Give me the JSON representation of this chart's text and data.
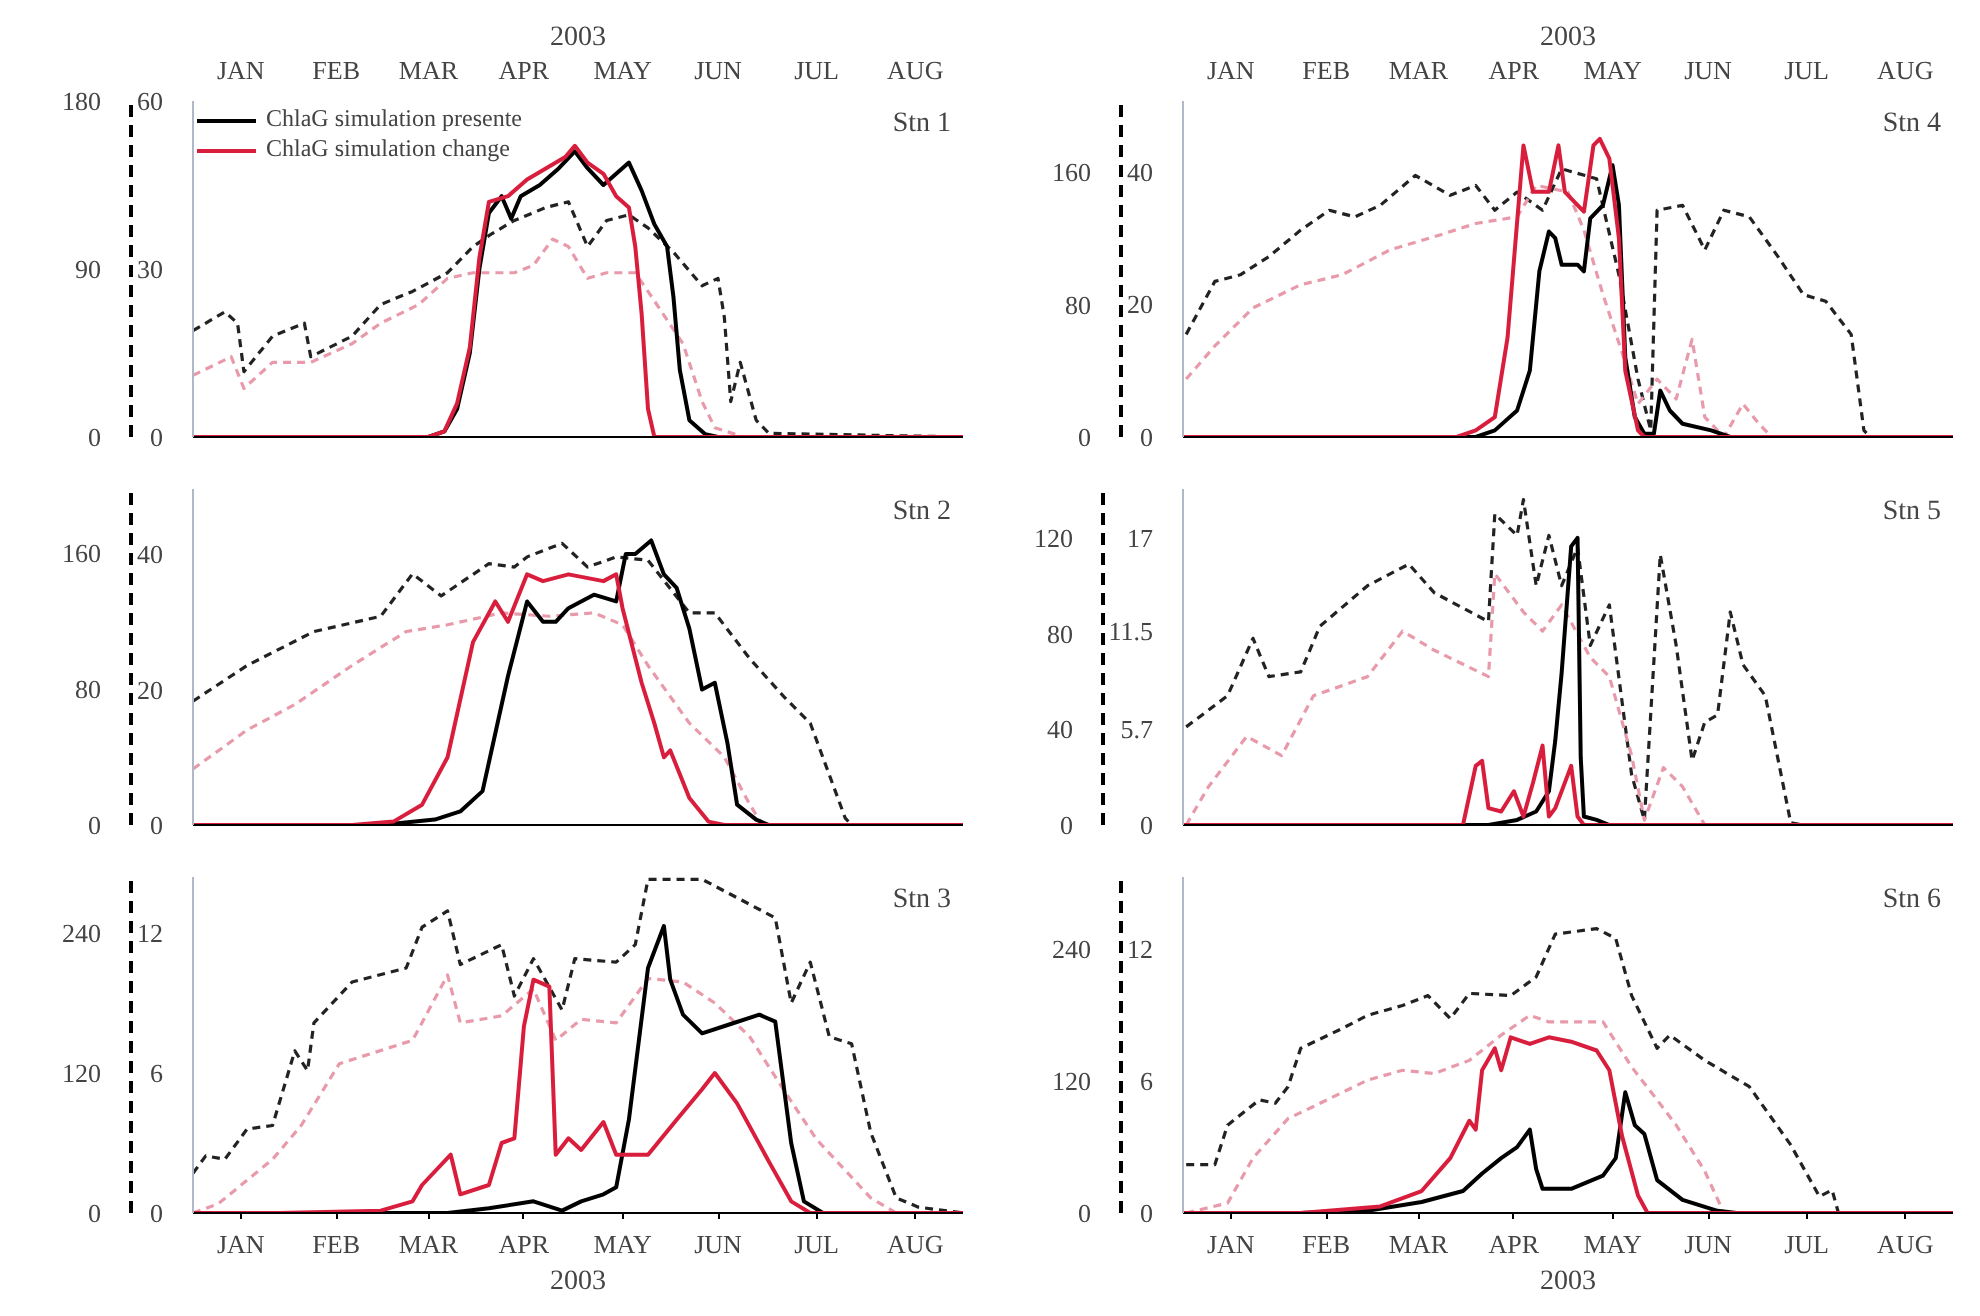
{
  "chart_data": [
    {
      "type": "line",
      "title": "Stn 1",
      "x2label": "2003",
      "xlim": [
        "2003-01-01",
        "2003-08-31"
      ],
      "x2lim": [
        "2003-01-01",
        "2003-08-31"
      ],
      "x2ticks": [
        {
          "value": "2003-01-16",
          "label": "JAN"
        },
        {
          "value": "2003-02-15",
          "label": "FEB"
        },
        {
          "value": "2003-03-16",
          "label": "MAR"
        },
        {
          "value": "2003-04-15",
          "label": "APR"
        },
        {
          "value": "2003-05-16",
          "label": "MAY"
        },
        {
          "value": "2003-06-15",
          "label": "JUN"
        },
        {
          "value": "2003-07-16",
          "label": "JUL"
        },
        {
          "value": "2003-08-16",
          "label": "AUG"
        }
      ],
      "ylim": [
        0,
        60
      ],
      "yticks": [
        0,
        30,
        60
      ],
      "y2lim": [
        0,
        180
      ],
      "y2ticks": [
        0,
        90,
        180
      ],
      "legend": "top left",
      "series": [
        {
          "name": "ChlaG simulation presente",
          "color": "#000000",
          "line_style": "solid",
          "x": [
            "2003-01-01",
            "2003-03-16",
            "2003-03-21",
            "2003-03-25",
            "2003-03-29",
            "2003-04-01",
            "2003-04-04",
            "2003-04-08",
            "2003-04-11",
            "2003-04-14",
            "2003-04-20",
            "2003-04-26",
            "2003-05-01",
            "2003-05-05",
            "2003-05-10",
            "2003-05-14",
            "2003-05-18",
            "2003-05-22",
            "2003-05-26",
            "2003-05-30",
            "2003-06-01",
            "2003-06-03",
            "2003-06-06",
            "2003-06-11",
            "2003-06-15",
            "2003-08-31"
          ],
          "values": [
            0,
            0,
            1,
            5,
            15,
            30,
            40,
            43,
            39,
            43,
            45,
            48,
            51,
            48,
            45,
            47,
            49,
            44,
            38,
            34,
            25,
            12,
            3,
            0.5,
            0,
            0
          ]
        },
        {
          "name": "ChlaG simulation change",
          "color": "#d81e3c",
          "line_style": "solid",
          "x": [
            "2003-01-01",
            "2003-03-16",
            "2003-03-21",
            "2003-03-25",
            "2003-03-29",
            "2003-04-01",
            "2003-04-04",
            "2003-04-10",
            "2003-04-16",
            "2003-04-22",
            "2003-04-28",
            "2003-05-01",
            "2003-05-05",
            "2003-05-10",
            "2003-05-14",
            "2003-05-18",
            "2003-05-20",
            "2003-05-22",
            "2003-05-24",
            "2003-05-26",
            "2003-08-31"
          ],
          "values": [
            0,
            0,
            1,
            6,
            16,
            32,
            42,
            43,
            46,
            48,
            50,
            52,
            49,
            47,
            43,
            41,
            34,
            22,
            5,
            0,
            0
          ]
        },
        {
          "color": "#222222",
          "axis": "y2",
          "line_style": "dashed",
          "x": [
            "2003-01-01",
            "2003-01-11",
            "2003-01-15",
            "2003-01-17",
            "2003-01-26",
            "2003-02-05",
            "2003-02-07",
            "2003-02-20",
            "2003-03-01",
            "2003-03-11",
            "2003-03-22",
            "2003-03-30",
            "2003-04-05",
            "2003-04-12",
            "2003-04-22",
            "2003-04-29",
            "2003-05-05",
            "2003-05-11",
            "2003-05-18",
            "2003-05-24",
            "2003-06-01",
            "2003-06-10",
            "2003-06-15",
            "2003-06-17",
            "2003-06-19",
            "2003-06-22",
            "2003-06-27",
            "2003-07-01",
            "2003-08-31"
          ],
          "values": [
            57,
            67,
            61,
            35,
            54,
            61,
            43,
            54,
            71,
            78,
            88,
            102,
            109,
            116,
            123,
            126,
            102,
            116,
            119,
            112,
            99,
            81,
            85,
            64,
            19,
            40,
            9,
            2,
            0
          ]
        },
        {
          "color": "#e89aaa",
          "axis": "y2",
          "line_style": "dashed",
          "x": [
            "2003-01-01",
            "2003-01-13",
            "2003-01-17",
            "2003-01-26",
            "2003-02-07",
            "2003-02-20",
            "2003-03-01",
            "2003-03-13",
            "2003-03-22",
            "2003-03-30",
            "2003-04-12",
            "2003-04-18",
            "2003-04-24",
            "2003-04-29",
            "2003-05-05",
            "2003-05-11",
            "2003-05-20",
            "2003-05-24",
            "2003-06-04",
            "2003-06-10",
            "2003-06-14",
            "2003-06-23",
            "2003-08-31"
          ],
          "values": [
            33,
            43,
            26,
            40,
            40,
            50,
            61,
            71,
            85,
            88,
            88,
            92,
            106,
            102,
            85,
            88,
            88,
            78,
            50,
            19,
            5,
            0,
            0
          ]
        }
      ]
    },
    {
      "type": "line",
      "title": "Stn 4",
      "x2label": "2003",
      "xlim": [
        "2003-01-01",
        "2003-08-31"
      ],
      "x2lim": [
        "2003-01-01",
        "2003-08-31"
      ],
      "x2ticks": [
        {
          "value": "2003-01-16",
          "label": "JAN"
        },
        {
          "value": "2003-02-15",
          "label": "FEB"
        },
        {
          "value": "2003-03-16",
          "label": "MAR"
        },
        {
          "value": "2003-04-15",
          "label": "APR"
        },
        {
          "value": "2003-05-16",
          "label": "MAY"
        },
        {
          "value": "2003-06-15",
          "label": "JUN"
        },
        {
          "value": "2003-07-16",
          "label": "JUL"
        },
        {
          "value": "2003-08-16",
          "label": "AUG"
        }
      ],
      "ylim": [
        0,
        50.7
      ],
      "yticks": [
        0,
        20,
        40
      ],
      "y2lim": [
        0,
        203
      ],
      "y2ticks": [
        0,
        80,
        160
      ],
      "series": [
        {
          "color": "#000000",
          "line_style": "solid",
          "x": [
            "2003-01-01",
            "2003-04-03",
            "2003-04-09",
            "2003-04-16",
            "2003-04-20",
            "2003-04-23",
            "2003-04-26",
            "2003-04-28",
            "2003-04-30",
            "2003-05-05",
            "2003-05-07",
            "2003-05-09",
            "2003-05-13",
            "2003-05-16",
            "2003-05-18",
            "2003-05-20",
            "2003-05-23",
            "2003-05-26",
            "2003-05-29",
            "2003-05-31",
            "2003-06-03",
            "2003-06-07",
            "2003-06-16",
            "2003-06-22",
            "2003-08-31"
          ],
          "values": [
            0,
            0,
            1,
            4,
            10,
            25,
            31,
            30,
            26,
            26,
            25,
            33,
            35,
            41,
            35,
            12,
            3,
            0.5,
            0.5,
            7,
            4,
            2,
            1,
            0,
            0
          ]
        },
        {
          "color": "#d81e3c",
          "line_style": "solid",
          "x": [
            "2003-01-01",
            "2003-03-28",
            "2003-04-03",
            "2003-04-09",
            "2003-04-13",
            "2003-04-18",
            "2003-04-21",
            "2003-04-26",
            "2003-04-29",
            "2003-05-01",
            "2003-05-05",
            "2003-05-07",
            "2003-05-10",
            "2003-05-12",
            "2003-05-15",
            "2003-05-18",
            "2003-05-20",
            "2003-05-24",
            "2003-05-26",
            "2003-08-31"
          ],
          "values": [
            0,
            0,
            1,
            3,
            15,
            44,
            37,
            37,
            44,
            37,
            35,
            34,
            44,
            45,
            42,
            30,
            10,
            1,
            0,
            0
          ]
        },
        {
          "color": "#222222",
          "axis": "y2",
          "line_style": "dashed",
          "x": [
            "2003-01-02",
            "2003-01-11",
            "2003-01-19",
            "2003-01-28",
            "2003-02-07",
            "2003-02-16",
            "2003-02-24",
            "2003-03-04",
            "2003-03-15",
            "2003-03-26",
            "2003-04-03",
            "2003-04-09",
            "2003-04-16",
            "2003-04-24",
            "2003-04-30",
            "2003-05-11",
            "2003-05-18",
            "2003-05-24",
            "2003-05-28",
            "2003-05-30",
            "2003-06-07",
            "2003-06-14",
            "2003-06-20",
            "2003-06-28",
            "2003-07-07",
            "2003-07-15",
            "2003-07-22",
            "2003-07-30",
            "2003-08-03",
            "2003-08-05",
            "2003-08-31"
          ],
          "values": [
            62,
            94,
            98,
            109,
            125,
            137,
            133,
            140,
            158,
            146,
            152,
            137,
            148,
            137,
            162,
            156,
            98,
            35,
            4,
            137,
            140,
            113,
            137,
            133,
            109,
            86,
            82,
            62,
            4,
            0,
            0
          ]
        },
        {
          "color": "#e89aaa",
          "axis": "y2",
          "line_style": "dashed",
          "x": [
            "2003-01-02",
            "2003-01-11",
            "2003-01-23",
            "2003-02-07",
            "2003-02-20",
            "2003-03-07",
            "2003-03-21",
            "2003-04-03",
            "2003-04-16",
            "2003-04-22",
            "2003-05-02",
            "2003-05-07",
            "2003-05-13",
            "2003-05-19",
            "2003-05-24",
            "2003-05-30",
            "2003-06-05",
            "2003-06-10",
            "2003-06-14",
            "2003-06-20",
            "2003-06-26",
            "2003-07-01",
            "2003-07-05",
            "2003-08-31"
          ],
          "values": [
            35,
            55,
            78,
            92,
            98,
            113,
            121,
            129,
            133,
            152,
            148,
            125,
            86,
            51,
            20,
            35,
            23,
            59,
            12,
            0,
            20,
            8,
            0,
            0
          ]
        }
      ]
    },
    {
      "type": "line",
      "title": "Stn 2",
      "tick_labels": "y",
      "xlim": [
        "2003-01-01",
        "2003-08-31"
      ],
      "ylim": [
        0,
        49.6
      ],
      "yticks": [
        0,
        20,
        40
      ],
      "y2lim": [
        0,
        198
      ],
      "y2ticks": [
        0,
        80,
        160
      ],
      "series": [
        {
          "color": "#000000",
          "line_style": "solid",
          "x": [
            "2003-01-01",
            "2003-03-01",
            "2003-03-18",
            "2003-03-26",
            "2003-04-02",
            "2003-04-10",
            "2003-04-16",
            "2003-04-21",
            "2003-04-25",
            "2003-04-29",
            "2003-05-07",
            "2003-05-14",
            "2003-05-17",
            "2003-05-20",
            "2003-05-25",
            "2003-05-29",
            "2003-06-02",
            "2003-06-06",
            "2003-06-10",
            "2003-06-14",
            "2003-06-18",
            "2003-06-21",
            "2003-06-27",
            "2003-07-01",
            "2003-08-31"
          ],
          "values": [
            0,
            0,
            0.8,
            2,
            5,
            22,
            33,
            30,
            30,
            32,
            34,
            33,
            40,
            40,
            42,
            37,
            35,
            29,
            20,
            21,
            12,
            3,
            0.8,
            0,
            0
          ]
        },
        {
          "color": "#d81e3c",
          "line_style": "solid",
          "x": [
            "2003-01-01",
            "2003-02-20",
            "2003-03-05",
            "2003-03-14",
            "2003-03-22",
            "2003-03-30",
            "2003-04-06",
            "2003-04-10",
            "2003-04-16",
            "2003-04-21",
            "2003-04-29",
            "2003-05-10",
            "2003-05-14",
            "2003-05-16",
            "2003-05-22",
            "2003-05-26",
            "2003-05-29",
            "2003-05-31",
            "2003-06-06",
            "2003-06-12",
            "2003-06-17",
            "2003-08-31"
          ],
          "values": [
            0,
            0,
            0.5,
            3,
            10,
            27,
            33,
            30,
            37,
            36,
            37,
            36,
            37,
            32,
            21,
            15,
            10,
            11,
            4,
            0.5,
            0,
            0
          ]
        },
        {
          "color": "#222222",
          "axis": "y2",
          "line_style": "dashed",
          "x": [
            "2003-01-01",
            "2003-01-18",
            "2003-02-08",
            "2003-03-01",
            "2003-03-11",
            "2003-03-20",
            "2003-04-04",
            "2003-04-12",
            "2003-04-16",
            "2003-04-27",
            "2003-05-05",
            "2003-05-14",
            "2003-05-24",
            "2003-06-06",
            "2003-06-14",
            "2003-06-25",
            "2003-07-06",
            "2003-07-14",
            "2003-07-25",
            "2003-07-27",
            "2003-08-31"
          ],
          "values": [
            73,
            94,
            114,
            123,
            148,
            135,
            154,
            152,
            158,
            166,
            152,
            158,
            156,
            125,
            125,
            98,
            75,
            60,
            4,
            0,
            0
          ]
        },
        {
          "color": "#e89aaa",
          "axis": "y2",
          "line_style": "dashed",
          "x": [
            "2003-01-01",
            "2003-01-18",
            "2003-02-02",
            "2003-02-20",
            "2003-03-09",
            "2003-03-22",
            "2003-04-08",
            "2003-04-23",
            "2003-05-07",
            "2003-05-16",
            "2003-05-24",
            "2003-06-06",
            "2003-06-17",
            "2003-06-25",
            "2003-06-29",
            "2003-08-31"
          ],
          "values": [
            33,
            56,
            71,
            94,
            114,
            118,
            125,
            123,
            125,
            118,
            94,
            60,
            40,
            12,
            0,
            0
          ]
        }
      ]
    },
    {
      "type": "line",
      "title": "Stn 5",
      "tick_labels": "y",
      "xlim": [
        "2003-01-01",
        "2003-08-31"
      ],
      "ylim": [
        0,
        19.9
      ],
      "yticks": [
        0,
        5.7,
        11.5,
        17
      ],
      "y2lim": [
        0,
        140.4
      ],
      "y2ticks": [
        0,
        40,
        80,
        120
      ],
      "series": [
        {
          "color": "#000000",
          "line_style": "solid",
          "x": [
            "2003-01-01",
            "2003-04-07",
            "2003-04-16",
            "2003-04-22",
            "2003-04-26",
            "2003-04-28",
            "2003-04-30",
            "2003-05-03",
            "2003-05-05",
            "2003-05-06",
            "2003-05-07",
            "2003-05-11",
            "2003-05-15",
            "2003-08-31"
          ],
          "values": [
            0,
            0,
            0.3,
            0.8,
            2,
            5,
            9,
            16.5,
            17,
            4,
            0.5,
            0.3,
            0,
            0
          ]
        },
        {
          "color": "#d81e3c",
          "line_style": "solid",
          "x": [
            "2003-01-01",
            "2003-03-30",
            "2003-04-03",
            "2003-04-05",
            "2003-04-07",
            "2003-04-11",
            "2003-04-15",
            "2003-04-18",
            "2003-04-21",
            "2003-04-24",
            "2003-04-26",
            "2003-04-28",
            "2003-05-03",
            "2003-05-05",
            "2003-05-07",
            "2003-08-31"
          ],
          "values": [
            0,
            0,
            3.5,
            3.8,
            1,
            0.8,
            2,
            0.5,
            2.5,
            4.7,
            0.5,
            1,
            3.5,
            0.5,
            0,
            0
          ]
        },
        {
          "color": "#222222",
          "axis": "y2",
          "line_style": "dashed",
          "x": [
            "2003-01-02",
            "2003-01-15",
            "2003-01-23",
            "2003-01-28",
            "2003-02-07",
            "2003-02-13",
            "2003-02-28",
            "2003-03-13",
            "2003-03-21",
            "2003-04-07",
            "2003-04-09",
            "2003-04-16",
            "2003-04-18",
            "2003-04-22",
            "2003-04-26",
            "2003-04-30",
            "2003-05-05",
            "2003-05-09",
            "2003-05-15",
            "2003-05-22",
            "2003-05-26",
            "2003-05-31",
            "2003-06-05",
            "2003-06-10",
            "2003-06-14",
            "2003-06-18",
            "2003-06-22",
            "2003-06-26",
            "2003-07-03",
            "2003-07-11",
            "2003-07-15",
            "2003-08-31"
          ],
          "values": [
            41,
            54,
            78,
            62,
            64,
            83,
            100,
            109,
            97,
            85,
            130,
            121,
            136,
            100,
            121,
            100,
            116,
            75,
            92,
            21,
            2,
            113,
            75,
            27,
            43,
            46,
            89,
            67,
            54,
            1,
            0,
            0
          ]
        },
        {
          "color": "#e89aaa",
          "axis": "y2",
          "line_style": "dashed",
          "x": [
            "2003-01-02",
            "2003-01-09",
            "2003-01-21",
            "2003-02-01",
            "2003-02-11",
            "2003-02-28",
            "2003-03-11",
            "2003-03-21",
            "2003-04-07",
            "2003-04-09",
            "2003-04-18",
            "2003-04-24",
            "2003-04-30",
            "2003-05-09",
            "2003-05-15",
            "2003-05-22",
            "2003-05-26",
            "2003-06-01",
            "2003-06-07",
            "2003-06-14",
            "2003-08-31"
          ],
          "values": [
            0,
            16,
            37,
            29,
            54,
            62,
            81,
            73,
            62,
            105,
            89,
            81,
            92,
            70,
            62,
            29,
            2,
            24,
            16,
            0,
            0
          ]
        }
      ]
    },
    {
      "type": "line",
      "title": "Stn 3",
      "xlabel": "2003",
      "xlim": [
        "2003-01-01",
        "2003-08-31"
      ],
      "xticks": [
        {
          "value": "2003-01-16",
          "label": "JAN"
        },
        {
          "value": "2003-02-15",
          "label": "FEB"
        },
        {
          "value": "2003-03-16",
          "label": "MAR"
        },
        {
          "value": "2003-04-15",
          "label": "APR"
        },
        {
          "value": "2003-05-16",
          "label": "MAY"
        },
        {
          "value": "2003-06-15",
          "label": "JUN"
        },
        {
          "value": "2003-07-16",
          "label": "JUL"
        },
        {
          "value": "2003-08-16",
          "label": "AUG"
        }
      ],
      "ylim": [
        0,
        14.4
      ],
      "yticks": [
        0,
        6,
        12
      ],
      "y2lim": [
        0,
        288
      ],
      "y2ticks": [
        0,
        120,
        240
      ],
      "series": [
        {
          "color": "#000000",
          "line_style": "solid",
          "x": [
            "2003-01-01",
            "2003-03-22",
            "2003-04-04",
            "2003-04-18",
            "2003-04-27",
            "2003-05-03",
            "2003-05-10",
            "2003-05-14",
            "2003-05-18",
            "2003-05-24",
            "2003-05-29",
            "2003-05-31",
            "2003-06-04",
            "2003-06-10",
            "2003-06-19",
            "2003-06-28",
            "2003-07-03",
            "2003-07-08",
            "2003-07-12",
            "2003-07-18",
            "2003-08-31"
          ],
          "values": [
            0,
            0,
            0.2,
            0.5,
            0.1,
            0.5,
            0.8,
            1.1,
            4,
            10.5,
            12.3,
            10,
            8.5,
            7.7,
            8.1,
            8.5,
            8.2,
            3,
            0.5,
            0,
            0
          ]
        },
        {
          "color": "#d81e3c",
          "line_style": "solid",
          "x": [
            "2003-01-01",
            "2003-01-28",
            "2003-03-01",
            "2003-03-11",
            "2003-03-14",
            "2003-03-23",
            "2003-03-26",
            "2003-04-04",
            "2003-04-08",
            "2003-04-12",
            "2003-04-15",
            "2003-04-18",
            "2003-04-23",
            "2003-04-25",
            "2003-04-29",
            "2003-05-03",
            "2003-05-10",
            "2003-05-14",
            "2003-05-24",
            "2003-06-02",
            "2003-06-10",
            "2003-06-14",
            "2003-06-21",
            "2003-07-01",
            "2003-07-08",
            "2003-07-14",
            "2003-08-31"
          ],
          "values": [
            0,
            0,
            0.1,
            0.5,
            1.2,
            2.5,
            0.8,
            1.2,
            3,
            3.2,
            8,
            10,
            9.7,
            2.5,
            3.2,
            2.7,
            3.9,
            2.5,
            2.5,
            4,
            5.3,
            6,
            4.7,
            2.2,
            0.5,
            0,
            0
          ]
        },
        {
          "color": "#222222",
          "axis": "y2",
          "line_style": "dashed",
          "x": [
            "2003-01-01",
            "2003-01-05",
            "2003-01-11",
            "2003-01-18",
            "2003-01-26",
            "2003-02-02",
            "2003-02-06",
            "2003-02-08",
            "2003-02-20",
            "2003-03-09",
            "2003-03-14",
            "2003-03-22",
            "2003-03-26",
            "2003-04-08",
            "2003-04-12",
            "2003-04-18",
            "2003-04-27",
            "2003-05-01",
            "2003-05-14",
            "2003-05-20",
            "2003-05-24",
            "2003-06-10",
            "2003-07-03",
            "2003-07-08",
            "2003-07-14",
            "2003-07-20",
            "2003-07-27",
            "2003-08-02",
            "2003-08-10",
            "2003-08-17",
            "2003-08-31"
          ],
          "values": [
            34,
            49,
            46,
            72,
            75,
            139,
            122,
            163,
            198,
            210,
            245,
            259,
            213,
            230,
            186,
            218,
            174,
            218,
            215,
            230,
            286,
            286,
            253,
            180,
            215,
            151,
            145,
            69,
            13,
            5,
            0
          ]
        },
        {
          "color": "#e89aaa",
          "axis": "y2",
          "line_style": "dashed",
          "x": [
            "2003-01-01",
            "2003-01-09",
            "2003-01-26",
            "2003-02-04",
            "2003-02-16",
            "2003-03-11",
            "2003-03-22",
            "2003-03-26",
            "2003-04-08",
            "2003-04-18",
            "2003-04-25",
            "2003-05-03",
            "2003-05-14",
            "2003-05-24",
            "2003-06-04",
            "2003-06-14",
            "2003-06-25",
            "2003-07-06",
            "2003-07-16",
            "2003-08-02",
            "2003-08-10",
            "2003-08-31"
          ],
          "values": [
            0,
            8,
            46,
            75,
            128,
            148,
            204,
            163,
            169,
            192,
            148,
            166,
            163,
            201,
            198,
            180,
            151,
            104,
            63,
            13,
            0,
            0
          ]
        }
      ]
    },
    {
      "type": "line",
      "title": "Stn 6",
      "xlabel": "2003",
      "xlim": [
        "2003-01-01",
        "2003-08-31"
      ],
      "xticks": [
        {
          "value": "2003-01-16",
          "label": "JAN"
        },
        {
          "value": "2003-02-15",
          "label": "FEB"
        },
        {
          "value": "2003-03-16",
          "label": "MAR"
        },
        {
          "value": "2003-04-15",
          "label": "APR"
        },
        {
          "value": "2003-05-16",
          "label": "MAY"
        },
        {
          "value": "2003-06-15",
          "label": "JUN"
        },
        {
          "value": "2003-07-16",
          "label": "JUL"
        },
        {
          "value": "2003-08-16",
          "label": "AUG"
        }
      ],
      "ylim": [
        0,
        15.3
      ],
      "yticks": [
        0,
        6,
        12
      ],
      "y2lim": [
        0,
        306
      ],
      "y2ticks": [
        0,
        120,
        240
      ],
      "series": [
        {
          "color": "#000000",
          "line_style": "solid",
          "x": [
            "2003-01-01",
            "2003-02-07",
            "2003-02-28",
            "2003-03-17",
            "2003-03-30",
            "2003-04-05",
            "2003-04-11",
            "2003-04-16",
            "2003-04-20",
            "2003-04-22",
            "2003-04-24",
            "2003-05-03",
            "2003-05-13",
            "2003-05-17",
            "2003-05-20",
            "2003-05-23",
            "2003-05-26",
            "2003-05-30",
            "2003-06-07",
            "2003-06-18",
            "2003-06-24",
            "2003-08-31"
          ],
          "values": [
            0,
            0,
            0.1,
            0.5,
            1,
            1.8,
            2.5,
            3,
            3.8,
            2,
            1.1,
            1.1,
            1.7,
            2.5,
            5.5,
            4,
            3.6,
            1.5,
            0.6,
            0.1,
            0,
            0
          ]
        },
        {
          "color": "#d81e3c",
          "line_style": "solid",
          "x": [
            "2003-01-01",
            "2003-02-07",
            "2003-03-04",
            "2003-03-17",
            "2003-03-26",
            "2003-04-01",
            "2003-04-03",
            "2003-04-05",
            "2003-04-09",
            "2003-04-11",
            "2003-04-14",
            "2003-04-20",
            "2003-04-26",
            "2003-05-03",
            "2003-05-11",
            "2003-05-15",
            "2003-05-19",
            "2003-05-24",
            "2003-05-27",
            "2003-08-31"
          ],
          "values": [
            0,
            0,
            0.3,
            1,
            2.5,
            4.2,
            3.8,
            6.5,
            7.5,
            6.5,
            8,
            7.7,
            8,
            7.8,
            7.4,
            6.5,
            3.5,
            0.8,
            0,
            0
          ]
        },
        {
          "color": "#222222",
          "axis": "y2",
          "line_style": "dashed",
          "x": [
            "2003-01-02",
            "2003-01-11",
            "2003-01-15",
            "2003-01-25",
            "2003-01-30",
            "2003-02-03",
            "2003-02-07",
            "2003-02-20",
            "2003-02-28",
            "2003-03-11",
            "2003-03-19",
            "2003-03-26",
            "2003-04-01",
            "2003-04-14",
            "2003-04-22",
            "2003-04-28",
            "2003-05-11",
            "2003-05-17",
            "2003-05-22",
            "2003-05-30",
            "2003-06-03",
            "2003-06-14",
            "2003-06-28",
            "2003-07-11",
            "2003-07-20",
            "2003-07-24",
            "2003-07-26",
            "2003-08-31"
          ],
          "values": [
            44,
            44,
            80,
            103,
            100,
            115,
            150,
            168,
            180,
            189,
            198,
            177,
            200,
            198,
            215,
            254,
            259,
            250,
            198,
            150,
            162,
            139,
            115,
            62,
            15,
            21,
            0,
            0
          ]
        },
        {
          "color": "#e89aaa",
          "axis": "y2",
          "line_style": "dashed",
          "x": [
            "2003-01-02",
            "2003-01-15",
            "2003-01-23",
            "2003-02-03",
            "2003-02-11",
            "2003-02-28",
            "2003-03-11",
            "2003-03-21",
            "2003-04-01",
            "2003-04-11",
            "2003-04-20",
            "2003-04-26",
            "2003-05-13",
            "2003-05-22",
            "2003-05-30",
            "2003-06-05",
            "2003-06-14",
            "2003-06-20",
            "2003-08-31"
          ],
          "values": [
            0,
            9,
            50,
            86,
            97,
            121,
            130,
            127,
            139,
            162,
            180,
            174,
            174,
            133,
            103,
            80,
            38,
            0,
            0
          ]
        }
      ]
    }
  ]
}
